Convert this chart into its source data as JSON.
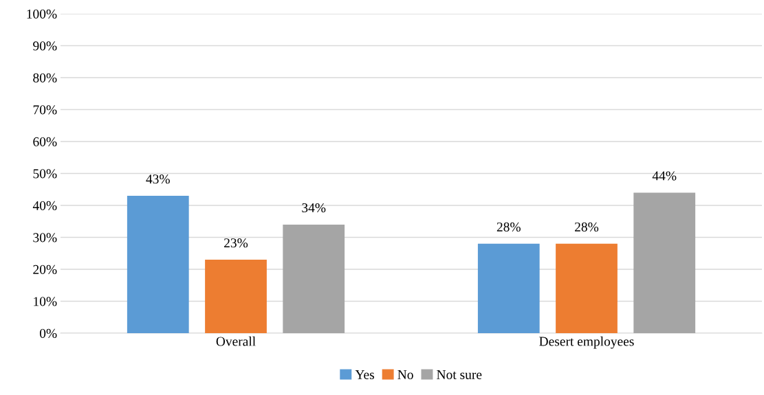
{
  "chart_data": {
    "type": "bar",
    "categories": [
      "Overall",
      "Desert employees"
    ],
    "series": [
      {
        "name": "Yes",
        "color": "#5b9bd5",
        "values": [
          43,
          28
        ]
      },
      {
        "name": "No",
        "color": "#ed7d31",
        "values": [
          23,
          28
        ]
      },
      {
        "name": "Not sure",
        "color": "#a5a5a5",
        "values": [
          34,
          44
        ]
      }
    ],
    "ylim": [
      0,
      100
    ],
    "yticks": [
      {
        "value": 0,
        "label": "0%"
      },
      {
        "value": 10,
        "label": "10%"
      },
      {
        "value": 20,
        "label": "20%"
      },
      {
        "value": 30,
        "label": "30%"
      },
      {
        "value": 40,
        "label": "40%"
      },
      {
        "value": 50,
        "label": "50%"
      },
      {
        "value": 60,
        "label": "60%"
      },
      {
        "value": 70,
        "label": "70%"
      },
      {
        "value": 80,
        "label": "80%"
      },
      {
        "value": 90,
        "label": "90%"
      },
      {
        "value": 100,
        "label": "100%"
      }
    ],
    "value_labels": [
      [
        "43%",
        "28%"
      ],
      [
        "23%",
        "28%"
      ],
      [
        "34%",
        "44%"
      ]
    ],
    "grid": "y",
    "legend": "bottom"
  }
}
